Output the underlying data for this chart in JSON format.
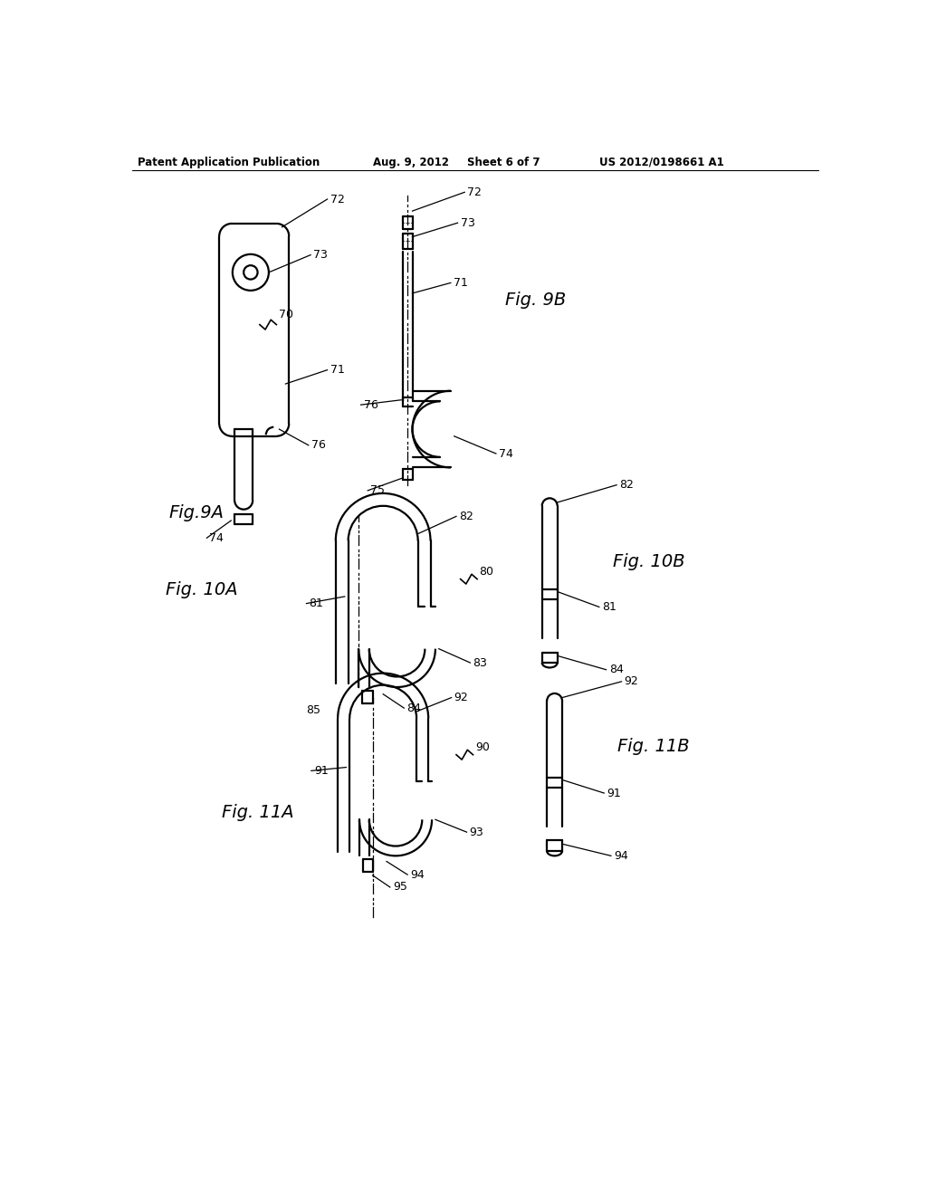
{
  "bg_color": "#ffffff",
  "header_text": "Patent Application Publication",
  "header_date": "Aug. 9, 2012",
  "header_sheet": "Sheet 6 of 7",
  "header_patent": "US 2012/0198661 A1",
  "fig_labels": {
    "fig9A": "Fig.9A",
    "fig9B": "Fig. 9B",
    "fig10A": "Fig. 10A",
    "fig10B": "Fig. 10B",
    "fig11A": "Fig. 11A",
    "fig11B": "Fig. 11B"
  }
}
